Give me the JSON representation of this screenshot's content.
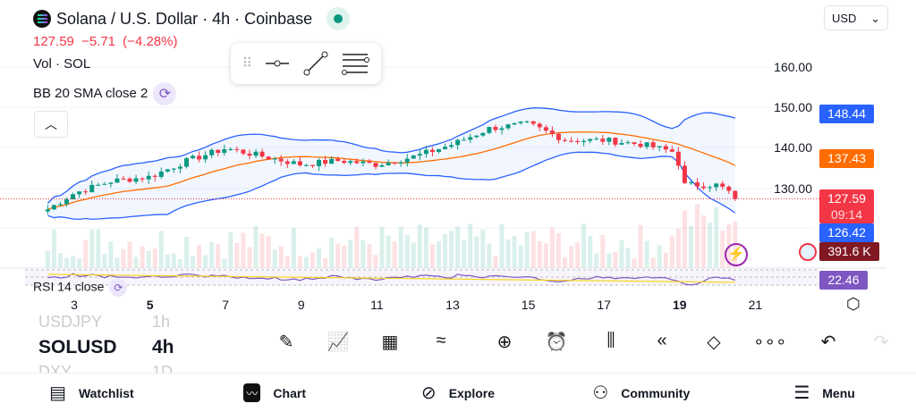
{
  "header": {
    "title": "Solana / U.S. Dollar · 4h · Coinbase",
    "price": "127.59",
    "change": "−5.71 (−4.28%)",
    "vol_label": "Vol · SOL",
    "bb_label": "BB 20 SMA close 2",
    "rsi_label": "RSI 14 close",
    "currency": "USD"
  },
  "price_axis": [
    "160.00",
    "150.00",
    "140.00",
    "130.00"
  ],
  "tags": {
    "upper": "148.44",
    "basis": "137.43",
    "last": "127.59",
    "countdown": "09:14",
    "lower": "126.42",
    "volume": "391.6 K",
    "rsi": "22.46"
  },
  "colors": {
    "up": "#089981",
    "down": "#f23645",
    "bb_band": "#2962ff",
    "bb_basis": "#ff6d00",
    "rsi": "#7e57c2"
  },
  "dates": [
    "3",
    "5",
    "7",
    "9",
    "11",
    "13",
    "15",
    "17",
    "19",
    "21"
  ],
  "chart_data": {
    "type": "candlestick",
    "interval": "4h",
    "approx_daily_closes": {
      "days": [
        2.3,
        3,
        4,
        5,
        6,
        7,
        8,
        9,
        10,
        11,
        12,
        13,
        14,
        15,
        16,
        17,
        18,
        18.9,
        19.1,
        20,
        20.6
      ],
      "prices": [
        125,
        129,
        132,
        133,
        137,
        140,
        138,
        136,
        137,
        136,
        138,
        141,
        145,
        146,
        142,
        142,
        141,
        139,
        131,
        131,
        127.6
      ]
    },
    "ylim": [
      120,
      162
    ]
  },
  "symbols": {
    "prev": "USDJPY",
    "prev_tf": "1h",
    "current": "SOLUSD",
    "current_tf": "4h",
    "next": "DXY",
    "next_tf": "1D"
  },
  "toolbar": [
    "draw",
    "indicators",
    "layouts",
    "compare",
    "add",
    "alert",
    "chart-type",
    "replay",
    "layers",
    "more",
    "undo",
    "redo"
  ],
  "nav": [
    {
      "label": "Watchlist",
      "icon": "watchlist-icon"
    },
    {
      "label": "Chart",
      "icon": "chart-icon"
    },
    {
      "label": "Explore",
      "icon": "compass-icon"
    },
    {
      "label": "Community",
      "icon": "community-icon"
    },
    {
      "label": "Menu",
      "icon": "menu-icon"
    }
  ]
}
